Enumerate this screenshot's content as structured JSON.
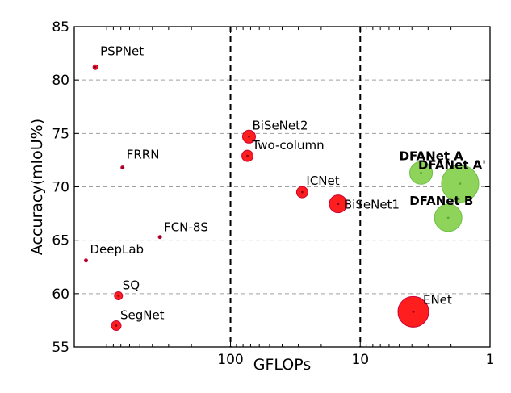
{
  "chart_data": {
    "type": "scatter",
    "title": "",
    "xlabel": "GFLOPs",
    "ylabel": "Accuracy(mIoU%)",
    "x_scale": "log",
    "x_reversed": true,
    "xlim": [
      1600,
      1
    ],
    "ylim": [
      55,
      85
    ],
    "x_ticks": [
      100,
      10,
      1
    ],
    "x_tick_labels": [
      "100",
      "10",
      "1"
    ],
    "y_ticks": [
      55,
      60,
      65,
      70,
      75,
      80,
      85
    ],
    "y_tick_labels": [
      "55",
      "60",
      "65",
      "70",
      "75",
      "80",
      "85"
    ],
    "grid": "horizontal dashed",
    "vertical_dashed_lines": [
      100,
      10
    ],
    "size_encoding": "marker area proportional to speed (larger = faster)",
    "colors": {
      "baseline": "#ff1e1e",
      "baseline_edge": "#cc0033",
      "ours": "#8fd45a",
      "ours_edge": "#6bbf45"
    },
    "points": [
      {
        "label": "PSPNet",
        "gflops": 1100,
        "miou": 81.2,
        "size": 3,
        "group": "baseline"
      },
      {
        "label": "FRRN",
        "gflops": 680,
        "miou": 71.8,
        "size": 2,
        "group": "baseline"
      },
      {
        "label": "FCN-8S",
        "gflops": 350,
        "miou": 65.3,
        "size": 2,
        "group": "baseline"
      },
      {
        "label": "DeepLab",
        "gflops": 1300,
        "miou": 63.1,
        "size": 2,
        "group": "baseline"
      },
      {
        "label": "SQ",
        "gflops": 730,
        "miou": 59.8,
        "size": 5,
        "group": "baseline"
      },
      {
        "label": "SegNet",
        "gflops": 760,
        "miou": 57.0,
        "size": 6,
        "group": "baseline"
      },
      {
        "label": "BiSeNet2",
        "gflops": 72,
        "miou": 74.7,
        "size": 8,
        "group": "baseline"
      },
      {
        "label": "Two-column",
        "gflops": 74,
        "miou": 72.9,
        "size": 7,
        "group": "baseline"
      },
      {
        "label": "ICNet",
        "gflops": 28,
        "miou": 69.5,
        "size": 7,
        "group": "baseline"
      },
      {
        "label": "BiSeNet1",
        "gflops": 14.8,
        "miou": 68.4,
        "size": 11,
        "group": "baseline"
      },
      {
        "label": "ENet",
        "gflops": 3.9,
        "miou": 58.3,
        "size": 19,
        "group": "baseline"
      },
      {
        "label": "DFANet A",
        "gflops": 3.4,
        "miou": 71.3,
        "size": 14,
        "group": "ours"
      },
      {
        "label": "DFANet A'",
        "gflops": 1.7,
        "miou": 70.3,
        "size": 23,
        "group": "ours"
      },
      {
        "label": "DFANet B",
        "gflops": 2.1,
        "miou": 67.1,
        "size": 17,
        "group": "ours"
      }
    ]
  }
}
